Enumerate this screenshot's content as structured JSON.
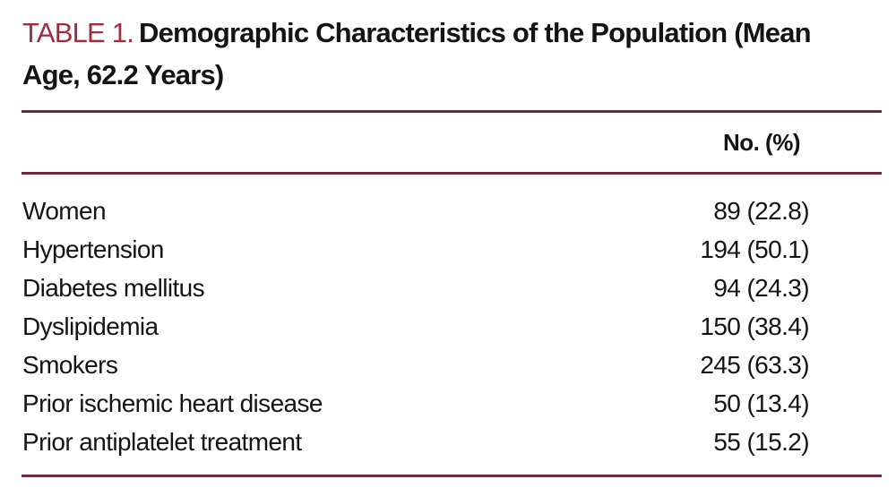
{
  "table": {
    "label": "TABLE 1.",
    "title": "Demographic Characteristics of the Population (Mean Age, 62.2 Years)",
    "columns": {
      "value_header": "No. (%)"
    },
    "rows": [
      {
        "label": "Women",
        "value": "89 (22.8)"
      },
      {
        "label": "Hypertension",
        "value": "194 (50.1)"
      },
      {
        "label": "Diabetes mellitus",
        "value": "94 (24.3)"
      },
      {
        "label": "Dyslipidemia",
        "value": "150 (38.4)"
      },
      {
        "label": "Smokers",
        "value": "245 (63.3)"
      },
      {
        "label": "Prior ischemic heart disease",
        "value": "50 (13.4)"
      },
      {
        "label": "Prior antiplatelet treatment",
        "value": "55 (15.2)"
      }
    ],
    "colors": {
      "label_red": "#a22c3e",
      "rule_maroon": "#71283a",
      "text_black": "#141414",
      "background": "#ffffff"
    }
  }
}
